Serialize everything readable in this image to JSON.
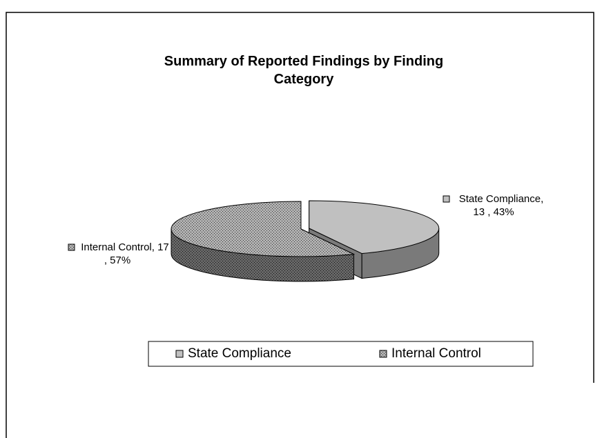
{
  "chart_data": {
    "type": "pie3d",
    "title": "Summary of Reported Findings by Finding Category",
    "categories": [
      "State Compliance",
      "Internal Control"
    ],
    "values": [
      13,
      17
    ],
    "value_labels": [
      "State Compliance, 13 , 43%",
      "Internal Control, 17 , 57%"
    ],
    "colors": [
      "#c0c0c0",
      "#9a9a9a"
    ],
    "legend": "bottom"
  }
}
